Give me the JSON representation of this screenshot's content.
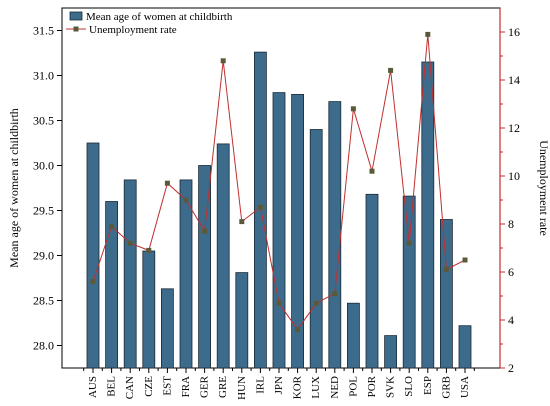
{
  "chart_data": {
    "type": "bar",
    "categories": [
      "AUS",
      "BEL",
      "CAN",
      "CZE",
      "EST",
      "FRA",
      "GER",
      "GRE",
      "HUN",
      "IRL",
      "JPN",
      "KOR",
      "LUX",
      "NED",
      "POL",
      "POR",
      "SVK",
      "SLO",
      "ESP",
      "GRB",
      "USA"
    ],
    "series": [
      {
        "name": "Mean age of women at childbirth",
        "type": "bar",
        "axis": "left",
        "color": "#3d6b8c",
        "values": [
          30.25,
          29.6,
          29.84,
          29.05,
          28.63,
          29.84,
          30.0,
          30.24,
          28.81,
          31.26,
          30.81,
          30.79,
          30.4,
          30.71,
          28.47,
          29.68,
          28.11,
          29.66,
          31.15,
          29.4,
          28.22
        ]
      },
      {
        "name": "Unemployment rate",
        "type": "line",
        "axis": "right",
        "line_color": "#c03030",
        "marker_color": "#5a5a3a",
        "values": [
          5.6,
          7.9,
          7.2,
          6.9,
          9.7,
          9.0,
          7.7,
          14.8,
          8.1,
          8.7,
          4.7,
          3.6,
          4.7,
          5.1,
          12.8,
          10.2,
          14.4,
          7.2,
          15.9,
          6.1,
          6.5
        ]
      }
    ],
    "left_axis": {
      "label": "Mean age of women at childbirth",
      "ylim": [
        27.75,
        31.75
      ],
      "ticks": [
        "28.0",
        "28.5",
        "29.0",
        "29.5",
        "30.0",
        "30.5",
        "31.0",
        "31.5"
      ],
      "tick_values": [
        28.0,
        28.5,
        29.0,
        29.5,
        30.0,
        30.5,
        31.0,
        31.5
      ]
    },
    "right_axis": {
      "label": "Unemployment rate",
      "ylim": [
        2,
        17
      ],
      "ticks": [
        "2",
        "4",
        "6",
        "8",
        "10",
        "12",
        "14",
        "16"
      ],
      "tick_values": [
        2,
        4,
        6,
        8,
        10,
        12,
        14,
        16
      ],
      "color": "#c03030"
    },
    "legend": {
      "placement": "top-left",
      "entries": [
        "Mean age of women at childbirth",
        "Unemployment rate"
      ]
    },
    "grid": false
  }
}
